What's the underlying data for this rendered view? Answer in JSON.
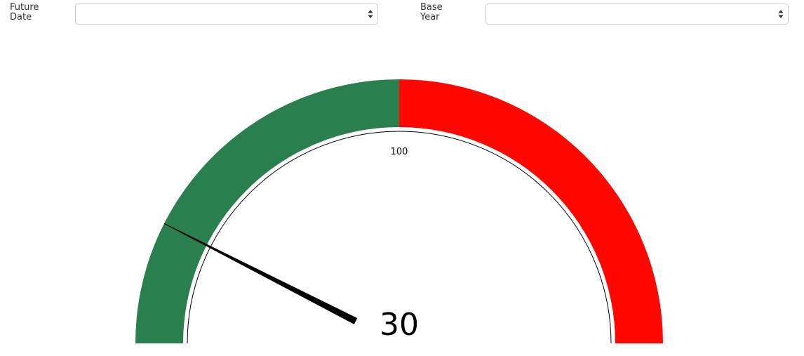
{
  "filters": {
    "future_date": {
      "label": "Future\nDate",
      "value": ""
    },
    "base_year": {
      "label": "Base\nYear",
      "value": ""
    },
    "arrow_icon": "up-down-arrows-icon"
  },
  "chart_data": {
    "type": "gauge",
    "min": 0,
    "max": 200,
    "value": 30,
    "value_label": "30",
    "tick_labels": [
      {
        "value": 100,
        "label": "100"
      }
    ],
    "bands": [
      {
        "from": 0,
        "to": 100,
        "color": "#2a7f4f"
      },
      {
        "from": 100,
        "to": 200,
        "color": "#ff0600"
      }
    ],
    "needle_color": "#000000"
  }
}
